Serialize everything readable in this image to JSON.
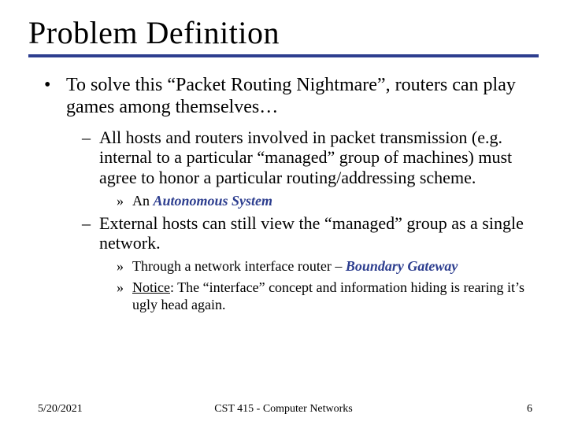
{
  "colors": {
    "rule": "#2d3e8f",
    "emphasis": "#2d3e8f",
    "text": "#000000",
    "background": "#ffffff"
  },
  "title": "Problem Definition",
  "bullets": {
    "lvl1": {
      "text": "To solve this “Packet Routing Nightmare”, routers can play games among themselves…"
    },
    "lvl2a": {
      "text": "All hosts and routers involved in packet transmission (e.g. internal to a particular “managed” group of machines) must agree to honor a particular routing/addressing scheme."
    },
    "lvl3a": {
      "prefix": "An ",
      "emph": "Autonomous System"
    },
    "lvl2b": {
      "text": "External hosts can still view the “managed” group as a single network."
    },
    "lvl3b": {
      "prefix": "Through a network interface router – ",
      "emph": "Boundary Gateway"
    },
    "lvl3c": {
      "uline": "Notice",
      "rest": ": The “interface” concept and information hiding is rearing it’s ugly head again."
    }
  },
  "footer": {
    "date": "5/20/2021",
    "course": "CST 415 - Computer Networks",
    "page": "6"
  }
}
